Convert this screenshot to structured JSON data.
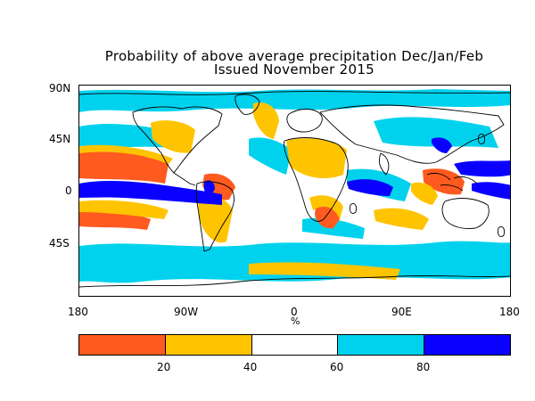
{
  "title_line1": "Probability of above average precipitation Dec/Jan/Feb",
  "title_line2": "Issued November 2015",
  "lat_labels": [
    "90N",
    "45N",
    "0",
    "45S"
  ],
  "lon_labels": [
    "180",
    "90W",
    "0",
    "90E",
    "180"
  ],
  "unit_label": "%",
  "colorbar": {
    "colors": [
      "#ff5a1f",
      "#ffc400",
      "#ffffff",
      "#00d2ee",
      "#0a00ff"
    ],
    "tick_labels": [
      "20",
      "40",
      "60",
      "80"
    ]
  }
}
